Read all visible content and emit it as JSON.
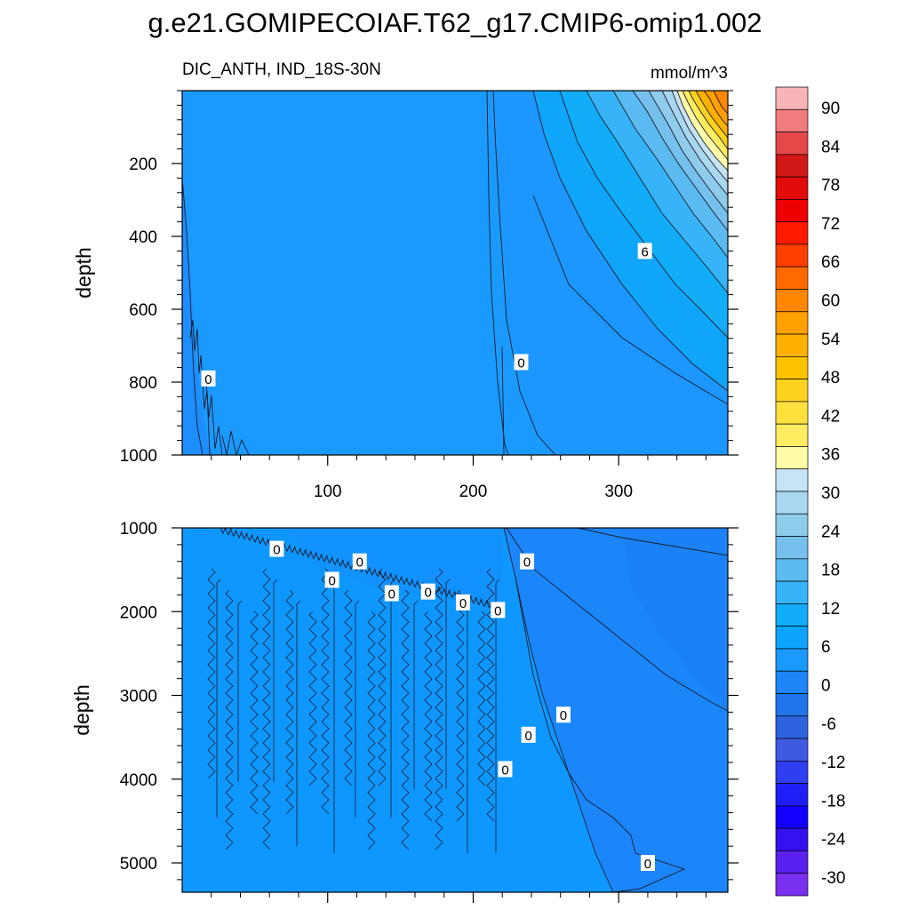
{
  "chart_data": [
    {
      "type": "contour",
      "title": "g.e21.GOMIPECOIAF.T62_g17.CMIP6-omip1.002",
      "subtitle_left": "DIC_ANTH, IND_18S-30N",
      "subtitle_right": "mmol/m^3",
      "ylabel": "depth",
      "xlabel": "",
      "xlim": [
        0,
        375
      ],
      "ylim": [
        1000,
        0
      ],
      "xticks": [
        100,
        200,
        300
      ],
      "xtick_labels": [
        "100",
        "200",
        "300"
      ],
      "yticks": [
        200,
        400,
        600,
        800,
        1000
      ],
      "ytick_labels": [
        "200",
        "400",
        "600",
        "800",
        "1000"
      ],
      "contour_labels": [
        {
          "text": "0",
          "x": 18,
          "y": 790
        },
        {
          "text": "0",
          "x": 233,
          "y": 745
        },
        {
          "text": "6",
          "x": 318,
          "y": 440
        }
      ]
    },
    {
      "type": "contour",
      "ylabel": "depth",
      "xlabel": "",
      "xlim": [
        0,
        375
      ],
      "ylim": [
        5350,
        1000
      ],
      "xticks": [
        100,
        200,
        300
      ],
      "yticks": [
        1000,
        2000,
        3000,
        4000,
        5000
      ],
      "ytick_labels": [
        "1000",
        "2000",
        "3000",
        "4000",
        "5000"
      ],
      "contour_labels": [
        {
          "text": "0",
          "x": 65,
          "y": 1250
        },
        {
          "text": "0",
          "x": 122,
          "y": 1400
        },
        {
          "text": "0",
          "x": 103,
          "y": 1620
        },
        {
          "text": "0",
          "x": 144,
          "y": 1780
        },
        {
          "text": "0",
          "x": 169,
          "y": 1760
        },
        {
          "text": "0",
          "x": 193,
          "y": 1890
        },
        {
          "text": "0",
          "x": 217,
          "y": 1980
        },
        {
          "text": "0",
          "x": 237,
          "y": 1400
        },
        {
          "text": "0",
          "x": 262,
          "y": 3230
        },
        {
          "text": "0",
          "x": 238,
          "y": 3470
        },
        {
          "text": "0",
          "x": 222,
          "y": 3880
        },
        {
          "text": "0",
          "x": 320,
          "y": 5000
        }
      ]
    }
  ],
  "colorbar": {
    "label_values": [
      "90",
      "84",
      "78",
      "72",
      "66",
      "60",
      "54",
      "48",
      "42",
      "36",
      "30",
      "24",
      "18",
      "12",
      "6",
      "0",
      "-6",
      "-12",
      "-18",
      "-24",
      "-30"
    ],
    "colors": [
      "#F8B5B8",
      "#F07C7E",
      "#E44848",
      "#D21717",
      "#E30A0A",
      "#EF0000",
      "#FF1A00",
      "#FF4000",
      "#FF6A00",
      "#FF8700",
      "#FF9F00",
      "#FFB000",
      "#FFC200",
      "#FFD21F",
      "#FFE03C",
      "#FFEC60",
      "#FFFCA8",
      "#C6E4F6",
      "#A9D7F0",
      "#8FCBEB",
      "#75C0EC",
      "#5BBBF0",
      "#37B4F8",
      "#12ADF8",
      "#0EA4FD",
      "#1A9AFF",
      "#1F86FA",
      "#2074EC",
      "#2E63E0",
      "#3F5AE0",
      "#2F3EF0",
      "#1F1EF8",
      "#1200FF",
      "#3710F0",
      "#5A20F0",
      "#7A30F0"
    ]
  },
  "colors": {
    "background_field": "#1A9AFF",
    "deep_field": "#1288FF",
    "mid_field": "#0E98FF"
  }
}
